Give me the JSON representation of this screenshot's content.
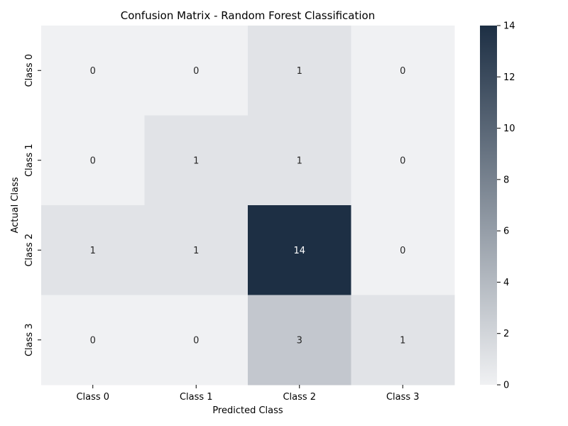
{
  "chart_data": {
    "type": "heatmap",
    "title": "Confusion Matrix - Random Forest Classification",
    "xlabel": "Predicted Class",
    "ylabel": "Actual Class",
    "x_categories": [
      "Class 0",
      "Class 1",
      "Class 2",
      "Class 3"
    ],
    "y_categories": [
      "Class 0",
      "Class 1",
      "Class 2",
      "Class 3"
    ],
    "values": [
      [
        0,
        0,
        1,
        0
      ],
      [
        0,
        1,
        1,
        0
      ],
      [
        1,
        1,
        14,
        0
      ],
      [
        0,
        0,
        3,
        1
      ]
    ],
    "colorbar": {
      "min": 0,
      "max": 14,
      "ticks": [
        "0",
        "2",
        "4",
        "6",
        "8",
        "10",
        "12",
        "14"
      ],
      "color_low": "#f0f1f3",
      "color_high": "#1d2f44"
    },
    "grid": false
  }
}
